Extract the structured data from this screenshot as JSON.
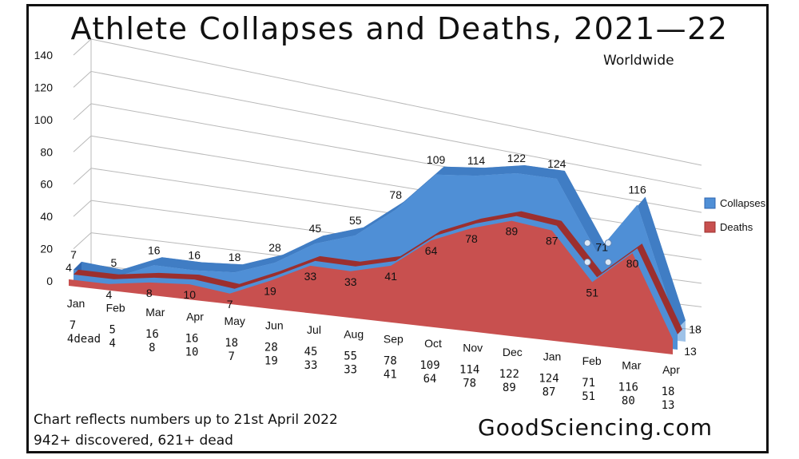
{
  "title": "Athlete Collapses and Deaths, 2021—22",
  "subtitle": "Worldwide",
  "footnote_line1": "Chart reflects numbers up to 21st April 2022",
  "footnote_line2": "942+ discovered, 621+ dead",
  "brand": "GoodSciencing.com",
  "colors": {
    "collapses": "#4f8fd6",
    "deaths": "#c8504f",
    "collapses_edge": "#2f66b0",
    "deaths_edge": "#9c2f2e"
  },
  "chart_data": {
    "type": "area",
    "categories": [
      "Jan",
      "Feb",
      "Mar",
      "Apr",
      "May",
      "Jun",
      "Jul",
      "Aug",
      "Sep",
      "Oct",
      "Nov",
      "Dec",
      "Jan",
      "Feb",
      "Mar",
      "Apr"
    ],
    "series": [
      {
        "name": "Collapses",
        "values": [
          7,
          5,
          16,
          16,
          18,
          28,
          45,
          55,
          78,
          109,
          114,
          122,
          124,
          71,
          116,
          18
        ]
      },
      {
        "name": "Deaths",
        "values": [
          4,
          4,
          8,
          10,
          7,
          19,
          33,
          33,
          41,
          64,
          78,
          89,
          87,
          51,
          80,
          13
        ]
      }
    ],
    "y_ticks": [
      "0",
      "20",
      "40",
      "60",
      "80",
      "100",
      "120",
      "140"
    ],
    "ylim": [
      0,
      140
    ],
    "grid": true,
    "legend": "right",
    "table_first_suffix": "dead"
  }
}
